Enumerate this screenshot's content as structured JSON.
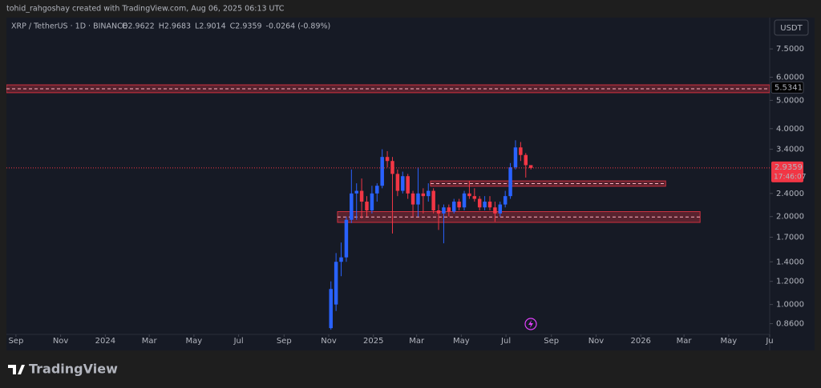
{
  "chart_data": {
    "type": "candlestick",
    "watermark": "tohid_rahgoshay created with TradingView.com, Aug 06, 2025 06:13 UTC",
    "symbol": "XRP / TetherUS · 1D · BINANCE",
    "ohlc_texts": [
      "O2.9622",
      "H2.9683",
      "L2.9014",
      "C2.9359",
      "-0.0264 (-0.89%)"
    ],
    "currency": "USDT",
    "logo": "TradingView",
    "log_scale": true,
    "grid": false,
    "up_color": "#2962ff",
    "down_color": "#f23645",
    "zone_color": "#f23645",
    "ylim": [
      0.79,
      9.6
    ],
    "yticks": [
      {
        "value": 7.5,
        "label": "7.5000"
      },
      {
        "value": 6,
        "label": "6.0000"
      },
      {
        "value": 5,
        "label": "5.0000"
      },
      {
        "value": 4,
        "label": "4.0000"
      },
      {
        "value": 3.4,
        "label": "3.4000"
      },
      {
        "value": 2.4,
        "label": "2.4000"
      },
      {
        "value": 2,
        "label": "2.0000"
      },
      {
        "value": 1.7,
        "label": "1.7000"
      },
      {
        "value": 1.4,
        "label": "1.4000"
      },
      {
        "value": 1.2,
        "label": "1.2000"
      },
      {
        "value": 1,
        "label": "1.0000"
      },
      {
        "value": 0.86,
        "label": "0.8600"
      }
    ],
    "xlim": [
      "2023-08-19",
      "2026-06-26"
    ],
    "xticks": [
      {
        "value": "2023-09-01",
        "label": "Sep"
      },
      {
        "value": "2023-11-01",
        "label": "Nov"
      },
      {
        "value": "2024-01-01",
        "label": "2024"
      },
      {
        "value": "2024-03-01",
        "label": "Mar"
      },
      {
        "value": "2024-05-01",
        "label": "May"
      },
      {
        "value": "2024-07-01",
        "label": "Jul"
      },
      {
        "value": "2024-09-01",
        "label": "Sep"
      },
      {
        "value": "2024-11-01",
        "label": "Nov"
      },
      {
        "value": "2025-01-01",
        "label": "2025"
      },
      {
        "value": "2025-03-01",
        "label": "Mar"
      },
      {
        "value": "2025-05-01",
        "label": "May"
      },
      {
        "value": "2025-07-01",
        "label": "Jul"
      },
      {
        "value": "2025-09-01",
        "label": "Sep"
      },
      {
        "value": "2025-11-01",
        "label": "Nov"
      },
      {
        "value": "2026-01-01",
        "label": "2026"
      },
      {
        "value": "2026-03-01",
        "label": "Mar"
      },
      {
        "value": "2026-05-01",
        "label": "May"
      },
      {
        "value": "2026-06-26",
        "label": "Ju"
      }
    ],
    "last_price": 2.9359,
    "countdown": "17:46:07",
    "level_price": 5.5341,
    "zones": [
      {
        "top": 5.65,
        "bottom": 5.31,
        "start": "2023-08-19",
        "end": "2026-06-26"
      },
      {
        "top": 2.65,
        "bottom": 2.54,
        "start": "2025-03-20",
        "end": "2026-02-04"
      },
      {
        "top": 2.08,
        "bottom": 1.91,
        "start": "2024-11-13",
        "end": "2026-03-23"
      }
    ],
    "candles": [
      {
        "x": "2024-11-04",
        "open": 0.83,
        "high": 1.2,
        "low": 0.82,
        "close": 1.13
      },
      {
        "x": "2024-11-11",
        "open": 1.0,
        "high": 1.5,
        "low": 0.95,
        "close": 1.4
      },
      {
        "x": "2024-11-18",
        "open": 1.4,
        "high": 1.63,
        "low": 1.25,
        "close": 1.45
      },
      {
        "x": "2024-11-25",
        "open": 1.45,
        "high": 2.0,
        "low": 1.4,
        "close": 1.95
      },
      {
        "x": "2024-12-02",
        "open": 1.95,
        "high": 2.9,
        "low": 1.9,
        "close": 2.4
      },
      {
        "x": "2024-12-09",
        "open": 2.4,
        "high": 2.6,
        "low": 1.95,
        "close": 2.45
      },
      {
        "x": "2024-12-16",
        "open": 2.45,
        "high": 2.7,
        "low": 1.97,
        "close": 2.25
      },
      {
        "x": "2024-12-23",
        "open": 2.25,
        "high": 2.35,
        "low": 2.0,
        "close": 2.1
      },
      {
        "x": "2024-12-30",
        "open": 2.1,
        "high": 2.55,
        "low": 2.05,
        "close": 2.4
      },
      {
        "x": "2025-01-06",
        "open": 2.4,
        "high": 2.6,
        "low": 2.25,
        "close": 2.55
      },
      {
        "x": "2025-01-13",
        "open": 2.55,
        "high": 3.4,
        "low": 2.5,
        "close": 3.2
      },
      {
        "x": "2025-01-20",
        "open": 3.2,
        "high": 3.35,
        "low": 2.95,
        "close": 3.1
      },
      {
        "x": "2025-01-27",
        "open": 3.1,
        "high": 3.2,
        "low": 1.75,
        "close": 2.8
      },
      {
        "x": "2025-02-03",
        "open": 2.8,
        "high": 2.9,
        "low": 2.35,
        "close": 2.45
      },
      {
        "x": "2025-02-10",
        "open": 2.45,
        "high": 2.85,
        "low": 2.4,
        "close": 2.75
      },
      {
        "x": "2025-02-17",
        "open": 2.75,
        "high": 2.8,
        "low": 2.3,
        "close": 2.4
      },
      {
        "x": "2025-02-24",
        "open": 2.4,
        "high": 2.45,
        "low": 2.0,
        "close": 2.2
      },
      {
        "x": "2025-03-03",
        "open": 2.2,
        "high": 2.95,
        "low": 2.0,
        "close": 2.4
      },
      {
        "x": "2025-03-10",
        "open": 2.4,
        "high": 2.5,
        "low": 2.05,
        "close": 2.35
      },
      {
        "x": "2025-03-17",
        "open": 2.35,
        "high": 2.6,
        "low": 2.25,
        "close": 2.45
      },
      {
        "x": "2025-03-24",
        "open": 2.45,
        "high": 2.5,
        "low": 2.05,
        "close": 2.1
      },
      {
        "x": "2025-03-31",
        "open": 2.1,
        "high": 2.2,
        "low": 1.8,
        "close": 2.05
      },
      {
        "x": "2025-04-07",
        "open": 2.05,
        "high": 2.2,
        "low": 1.62,
        "close": 2.15
      },
      {
        "x": "2025-04-14",
        "open": 2.15,
        "high": 2.2,
        "low": 2.0,
        "close": 2.08
      },
      {
        "x": "2025-04-21",
        "open": 2.08,
        "high": 2.3,
        "low": 2.05,
        "close": 2.25
      },
      {
        "x": "2025-04-28",
        "open": 2.25,
        "high": 2.3,
        "low": 2.1,
        "close": 2.15
      },
      {
        "x": "2025-05-05",
        "open": 2.15,
        "high": 2.45,
        "low": 2.1,
        "close": 2.4
      },
      {
        "x": "2025-05-12",
        "open": 2.4,
        "high": 2.65,
        "low": 2.3,
        "close": 2.35
      },
      {
        "x": "2025-05-19",
        "open": 2.35,
        "high": 2.5,
        "low": 2.25,
        "close": 2.3
      },
      {
        "x": "2025-05-26",
        "open": 2.3,
        "high": 2.35,
        "low": 2.1,
        "close": 2.15
      },
      {
        "x": "2025-06-02",
        "open": 2.15,
        "high": 2.35,
        "low": 2.1,
        "close": 2.25
      },
      {
        "x": "2025-06-09",
        "open": 2.25,
        "high": 2.35,
        "low": 2.1,
        "close": 2.15
      },
      {
        "x": "2025-06-16",
        "open": 2.15,
        "high": 2.25,
        "low": 1.92,
        "close": 2.05
      },
      {
        "x": "2025-06-23",
        "open": 2.05,
        "high": 2.25,
        "low": 2.0,
        "close": 2.2
      },
      {
        "x": "2025-06-30",
        "open": 2.2,
        "high": 2.45,
        "low": 2.15,
        "close": 2.35
      },
      {
        "x": "2025-07-07",
        "open": 2.35,
        "high": 3.05,
        "low": 2.3,
        "close": 2.95
      },
      {
        "x": "2025-07-14",
        "open": 2.95,
        "high": 3.65,
        "low": 2.9,
        "close": 3.45
      },
      {
        "x": "2025-07-21",
        "open": 3.45,
        "high": 3.6,
        "low": 3.1,
        "close": 3.25
      },
      {
        "x": "2025-07-28",
        "open": 3.25,
        "high": 3.3,
        "low": 2.72,
        "close": 3.0
      },
      {
        "x": "2025-08-04",
        "open": 3.0,
        "high": 3.0,
        "low": 2.9,
        "close": 2.9359
      }
    ]
  }
}
